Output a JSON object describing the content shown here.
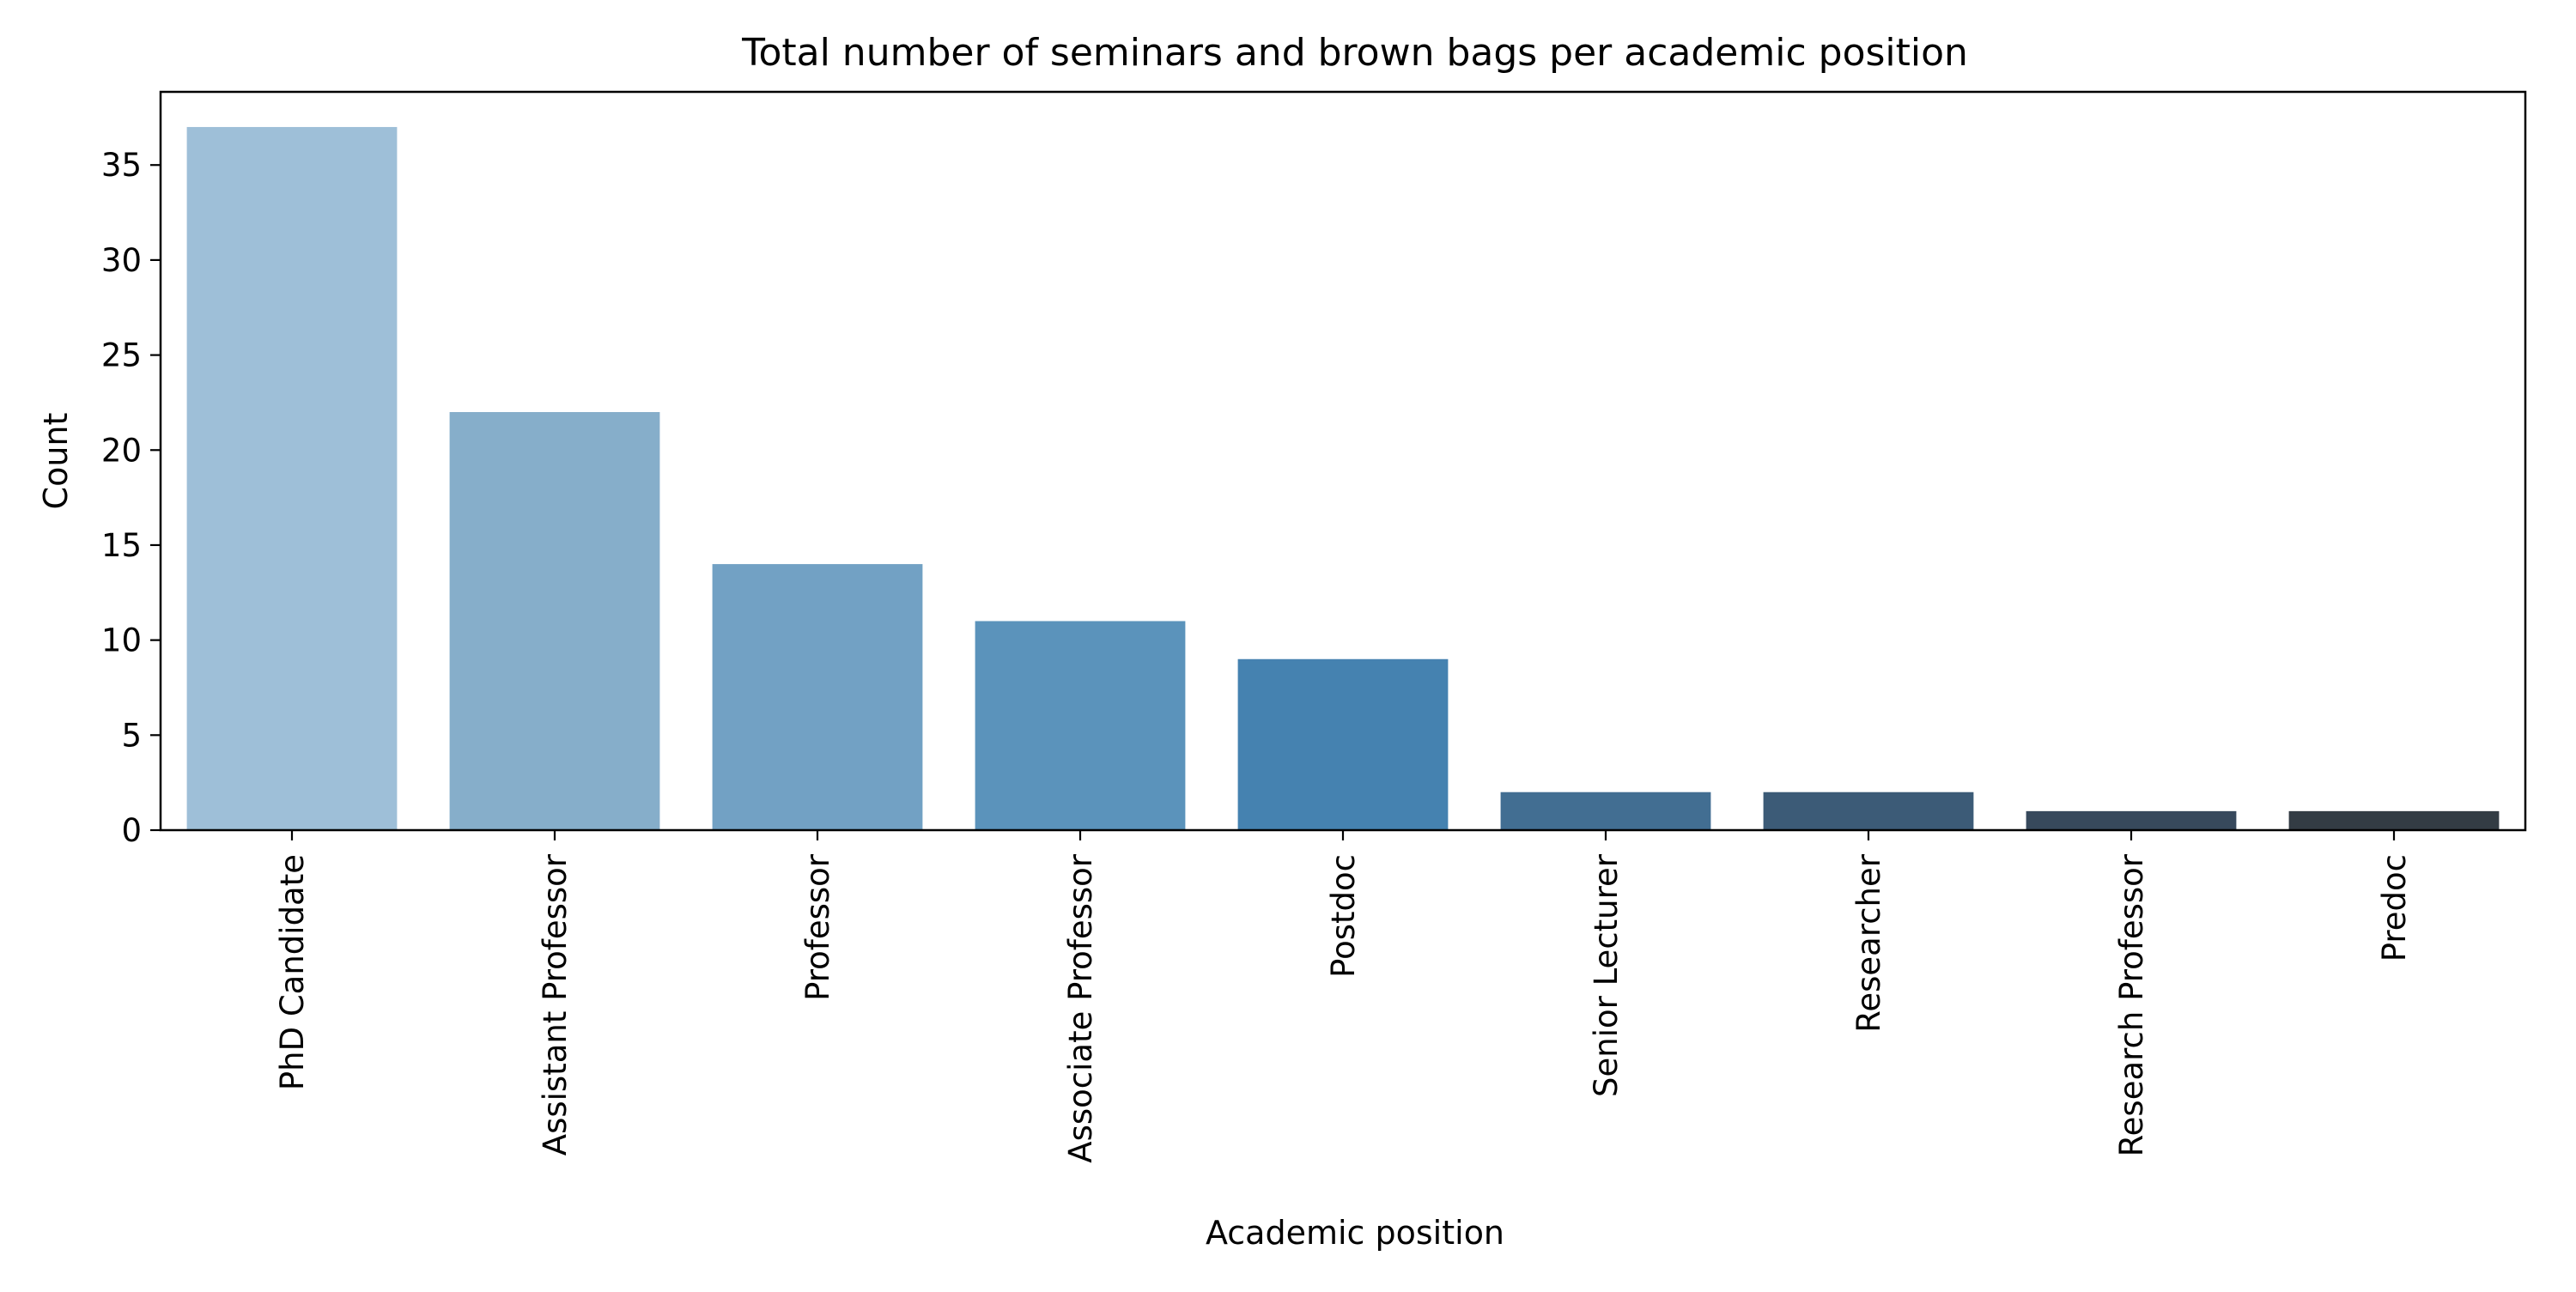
{
  "chart_data": {
    "type": "bar",
    "title": "Total number of seminars and brown bags per academic position",
    "xlabel": "Academic position",
    "ylabel": "Count",
    "categories": [
      "PhD Candidate",
      "Assistant Professor",
      "Professor",
      "Associate Professor",
      "Postdoc",
      "Senior Lecturer",
      "Researcher",
      "Research Professor",
      "Predoc"
    ],
    "values": [
      37,
      22,
      14,
      11,
      9,
      2,
      2,
      1,
      1
    ],
    "colors": [
      "#9ebfd8",
      "#86aeca",
      "#72a1c4",
      "#5b93bb",
      "#4582b0",
      "#426e92",
      "#3c5b77",
      "#37495c",
      "#333c44"
    ],
    "ylim": [
      0,
      38.85
    ],
    "yticks": [
      "0",
      "5",
      "10",
      "15",
      "20",
      "25",
      "30",
      "35"
    ],
    "grid": false,
    "legend": "none"
  }
}
